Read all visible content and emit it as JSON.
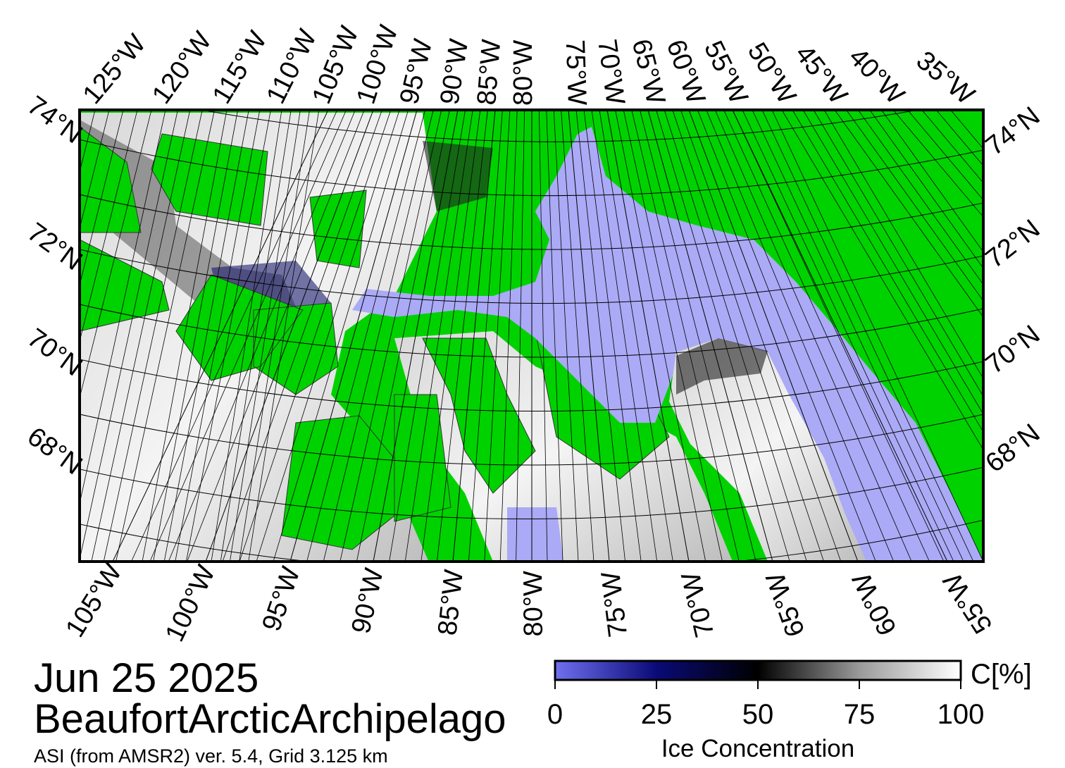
{
  "map": {
    "top_lon_labels": [
      "125°W",
      "120°W",
      "115°W",
      "110°W",
      "105°W",
      "100°W",
      "95°W",
      "90°W",
      "85°W",
      "80°W",
      "75°W",
      "70°W",
      "65°W",
      "60°W",
      "55°W",
      "50°W",
      "45°W",
      "40°W",
      "35°W"
    ],
    "bottom_lon_labels": [
      "105°W",
      "100°W",
      "95°W",
      "90°W",
      "85°W",
      "80°W",
      "75°W",
      "70°W",
      "65°W",
      "60°W",
      "55°W"
    ],
    "left_lat_labels": [
      "74°N",
      "72°N",
      "70°N",
      "68°N"
    ],
    "right_lat_labels": [
      "74°N",
      "72°N",
      "70°N",
      "68°N"
    ],
    "land_color": "#00d200",
    "water_color": "#aaaaf6"
  },
  "date": "Jun 25 2025",
  "region": "BeaufortArcticArchipelago",
  "source": "ASI (from AMSR2) ver. 5.4,  Grid 3.125 km",
  "colorbar": {
    "label": "Ice Concentration",
    "unit": "C[%]",
    "lim": [
      0,
      100
    ],
    "ticks": [
      0,
      25,
      50,
      75,
      100
    ],
    "colors": [
      "#7070ee",
      "#0a0a78",
      "#000000",
      "#9a9a9a",
      "#ffffff"
    ]
  }
}
